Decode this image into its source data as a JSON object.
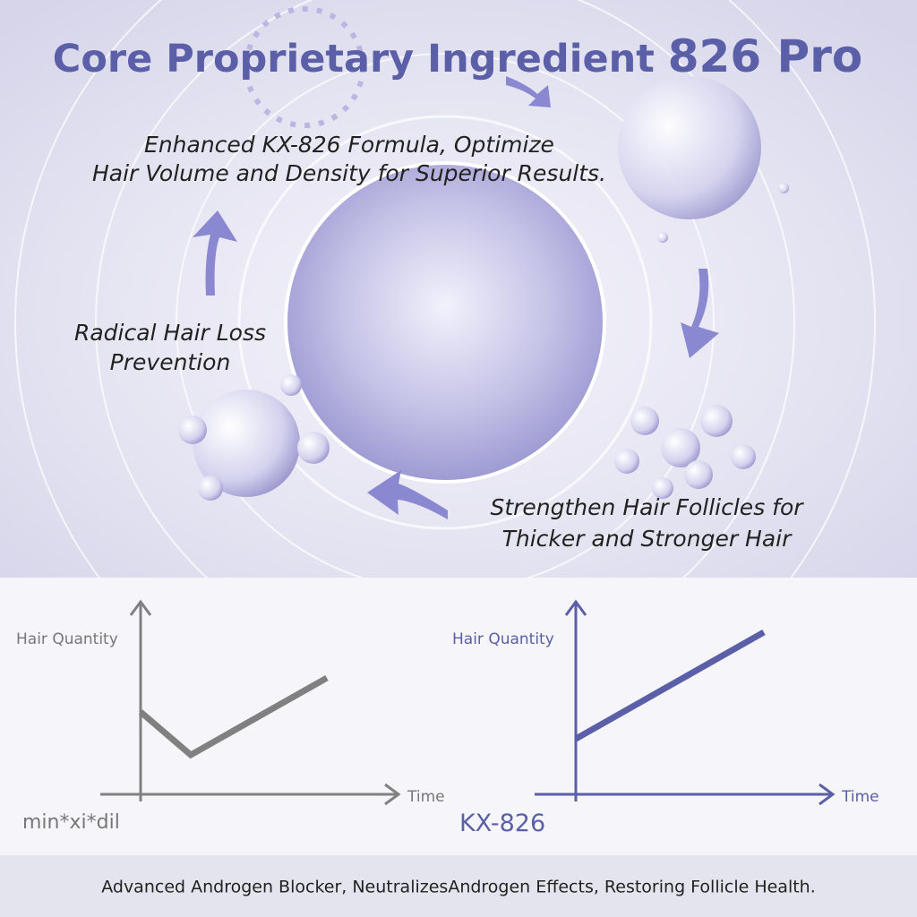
{
  "header": {
    "title": "Core Proprietary Ingredient",
    "highlight": "826 Pro"
  },
  "features": [
    {
      "lines": [
        "Enhanced KX-826 Formula,  Optimize",
        "Hair Volume and Density for Superior Results."
      ]
    },
    {
      "lines": [
        "Radical Hair Loss",
        "Prevention"
      ]
    },
    {
      "lines": [
        "Strengthen Hair Follicles for",
        "Thicker and Stronger Hair"
      ]
    }
  ],
  "comparison": [
    {
      "y_label": "Hair Quantity",
      "x_label": "Time",
      "name": "min*xi*dil"
    },
    {
      "y_label": "Hair Quantity",
      "x_label": "Time",
      "name": "KX-826"
    }
  ],
  "footer": {
    "text": "Advanced Androgen Blocker, NeutralizesAndrogen Effects, Restoring Follicle Health."
  }
}
